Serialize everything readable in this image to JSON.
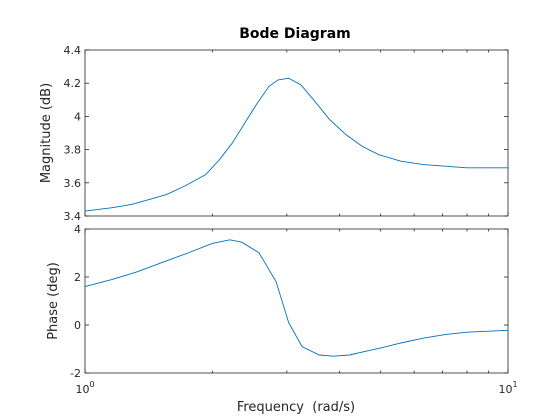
{
  "chart_data": {
    "type": "line",
    "title": "Bode Diagram",
    "xlabel": "Frequency  (rad/s)",
    "xscale": "log",
    "xlim": [
      1,
      10
    ],
    "x_ticks": [
      {
        "base": "10",
        "exp": "0",
        "value": 1
      },
      {
        "base": "10",
        "exp": "1",
        "value": 10
      }
    ],
    "line_color": "#0072bd",
    "axes_color": "#262626",
    "grid": false,
    "panels": [
      {
        "name": "magnitude",
        "ylabel": "Magnitude (dB)",
        "ylim": [
          3.4,
          4.4
        ],
        "yticks": [
          "3.4",
          "3.6",
          "3.8",
          "4",
          "4.2",
          "4.4"
        ],
        "ytick_values": [
          3.4,
          3.6,
          3.8,
          4.0,
          4.2,
          4.4
        ],
        "x": [
          1.0,
          1.16,
          1.29,
          1.42,
          1.56,
          1.72,
          1.93,
          2.08,
          2.23,
          2.4,
          2.54,
          2.72,
          2.86,
          3.03,
          3.24,
          3.47,
          3.79,
          4.14,
          4.52,
          4.94,
          5.58,
          6.3,
          7.1,
          8.0,
          10.0
        ],
        "y": [
          3.43,
          3.45,
          3.47,
          3.5,
          3.53,
          3.58,
          3.65,
          3.74,
          3.84,
          3.97,
          4.07,
          4.18,
          4.22,
          4.23,
          4.19,
          4.1,
          3.98,
          3.89,
          3.82,
          3.77,
          3.73,
          3.71,
          3.7,
          3.69,
          3.69
        ]
      },
      {
        "name": "phase",
        "ylabel": "Phase (deg)",
        "ylim": [
          -2,
          4
        ],
        "yticks": [
          "-2",
          "0",
          "2",
          "4"
        ],
        "ytick_values": [
          -2,
          0,
          2,
          4
        ],
        "x": [
          1.0,
          1.16,
          1.32,
          1.52,
          1.75,
          2.0,
          2.2,
          2.35,
          2.58,
          2.83,
          3.03,
          3.26,
          3.58,
          3.86,
          4.22,
          4.59,
          5.02,
          5.58,
          6.3,
          7.1,
          8.0,
          10.0
        ],
        "y": [
          1.6,
          1.9,
          2.2,
          2.6,
          3.0,
          3.4,
          3.55,
          3.45,
          3.0,
          1.8,
          0.1,
          -0.9,
          -1.25,
          -1.3,
          -1.25,
          -1.1,
          -0.95,
          -0.75,
          -0.55,
          -0.4,
          -0.3,
          -0.22
        ]
      }
    ]
  }
}
